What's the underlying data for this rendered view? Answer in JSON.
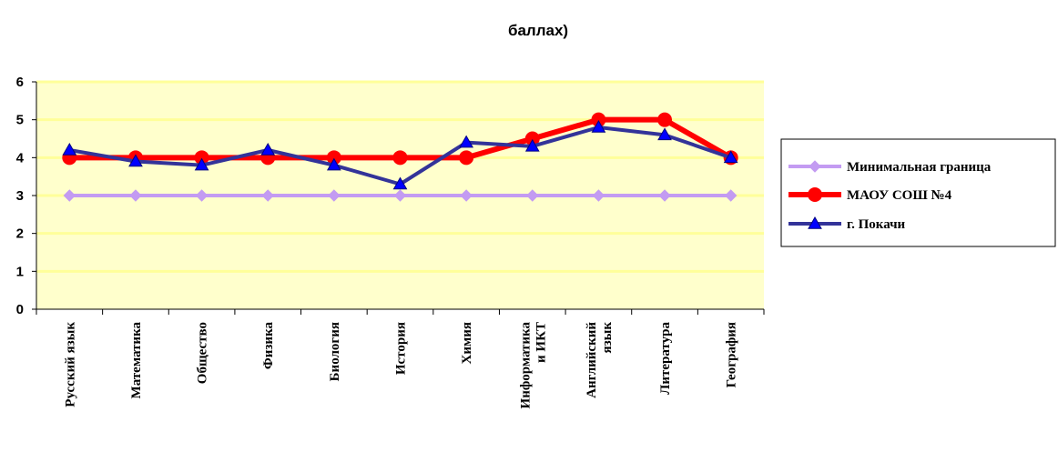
{
  "chart_data": {
    "type": "line",
    "title": "баллах)",
    "ylim": [
      0,
      6
    ],
    "yticks": [
      "0",
      "1",
      "2",
      "3",
      "4",
      "5",
      "6"
    ],
    "grid": true,
    "legend_position": "right",
    "categories": [
      [
        "Русский язык"
      ],
      [
        "Математика"
      ],
      [
        "Общество"
      ],
      [
        "Физика"
      ],
      [
        "Биология"
      ],
      [
        "История"
      ],
      [
        "Химия"
      ],
      [
        "Информатика",
        "и ИКТ"
      ],
      [
        "Английский",
        "язык"
      ],
      [
        "Литература"
      ],
      [
        "География"
      ]
    ],
    "series": [
      {
        "name": "Минимальная граница",
        "color": "#c39bf2",
        "marker": "diamond",
        "values": [
          3,
          3,
          3,
          3,
          3,
          3,
          3,
          3,
          3,
          3,
          3
        ]
      },
      {
        "name": "МАОУ СОШ №4",
        "color": "#ff0000",
        "marker": "circle",
        "values": [
          4,
          4,
          4,
          4,
          4,
          4,
          4,
          4.5,
          5,
          5,
          4
        ]
      },
      {
        "name": "г. Покачи",
        "color": "#333399",
        "marker": "triangle",
        "values": [
          4.2,
          3.9,
          3.8,
          4.2,
          3.8,
          3.3,
          4.4,
          4.3,
          4.8,
          4.6,
          4
        ]
      }
    ]
  }
}
